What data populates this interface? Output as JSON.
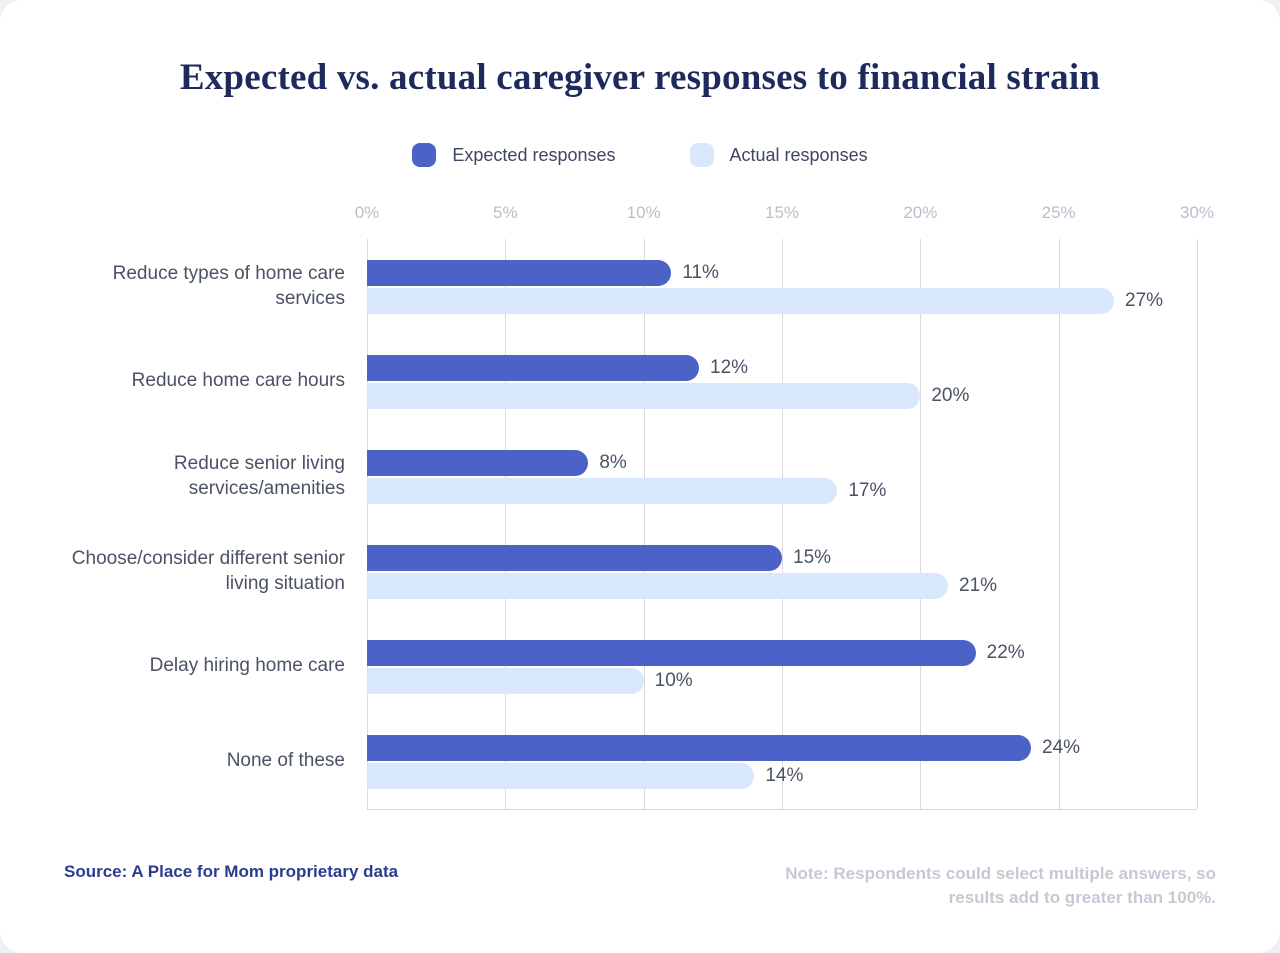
{
  "chart": {
    "title": "Expected vs. actual caregiver responses to financial strain"
  },
  "legend": {
    "expected_label": "Expected responses",
    "actual_label": "Actual responses"
  },
  "chart_data": {
    "type": "bar",
    "orientation": "horizontal",
    "title": "Expected vs. actual caregiver responses to financial strain",
    "categories": [
      "Reduce types of home care services",
      "Reduce home care hours",
      "Reduce senior living services/amenities",
      "Choose/consider different senior living situation",
      "Delay hiring home care",
      "None of these"
    ],
    "series": [
      {
        "name": "Expected responses",
        "color": "#4d62c6",
        "values": [
          11,
          12,
          8,
          15,
          22,
          24
        ]
      },
      {
        "name": "Actual responses",
        "color": "#d9e8fc",
        "values": [
          27,
          20,
          17,
          21,
          10,
          14
        ]
      }
    ],
    "value_suffix": "%",
    "xlim": [
      0,
      30
    ],
    "x_ticks": [
      "0%",
      "5%",
      "10%",
      "15%",
      "20%",
      "25%",
      "30%"
    ],
    "grid": true,
    "legend_position": "top"
  },
  "footer": {
    "source": "Source: A Place for Mom proprietary data",
    "note": "Note: Respondents could select multiple answers, so results add to greater than 100%."
  },
  "colors": {
    "expected_bar": "#4d62c6",
    "actual_bar": "#d9e8fc",
    "title_text": "#1f2a5c",
    "category_text": "#4a5264",
    "tick_text": "#b9bec9",
    "gridline": "#d8dadf",
    "source_text": "#2c3c90",
    "note_text": "#c5c9d3"
  }
}
